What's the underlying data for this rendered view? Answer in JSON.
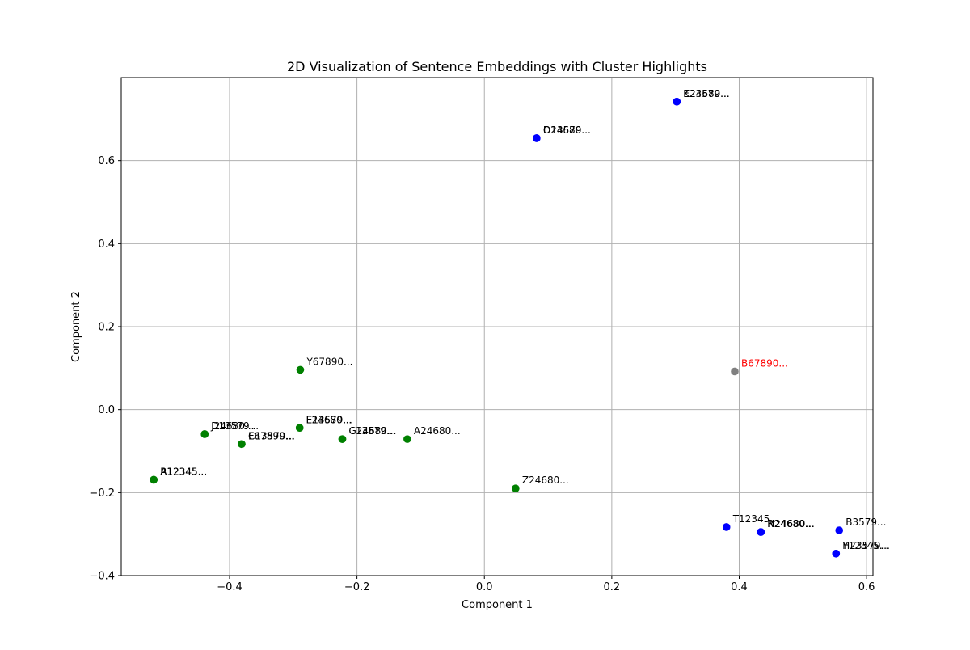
{
  "chart_data": {
    "type": "scatter",
    "title": "2D Visualization of Sentence Embeddings with Cluster Highlights",
    "xlabel": "Component 1",
    "ylabel": "Component 2",
    "xlim": [
      -0.57,
      0.61
    ],
    "ylim": [
      -0.4,
      0.8
    ],
    "x_ticks": [
      -0.4,
      -0.2,
      0.0,
      0.2,
      0.4,
      0.6
    ],
    "x_tick_labels": [
      "−0.4",
      "−0.2",
      "0.0",
      "0.2",
      "0.4",
      "0.6"
    ],
    "y_ticks": [
      -0.4,
      -0.2,
      0.0,
      0.2,
      0.4,
      0.6
    ],
    "y_tick_labels": [
      "−0.4",
      "−0.2",
      "0.0",
      "0.2",
      "0.4",
      "0.6"
    ],
    "grid": true,
    "colors": {
      "blue": "#0000ff",
      "green": "#008000",
      "gray": "#808080",
      "red": "#ff0000"
    },
    "points": [
      {
        "x": 0.302,
        "y": 0.742,
        "color": "blue",
        "label": "E23579...",
        "label_color": "black"
      },
      {
        "x": 0.302,
        "y": 0.742,
        "color": "blue",
        "label": "K24680...",
        "label_color": "black"
      },
      {
        "x": 0.082,
        "y": 0.654,
        "color": "blue",
        "label": "O13579...",
        "label_color": "black"
      },
      {
        "x": 0.082,
        "y": 0.654,
        "color": "blue",
        "label": "D24680...",
        "label_color": "black"
      },
      {
        "x": -0.289,
        "y": 0.096,
        "color": "green",
        "label": "Y67890...",
        "label_color": "black"
      },
      {
        "x": 0.393,
        "y": 0.092,
        "color": "gray",
        "label": "B67890...",
        "label_color": "red"
      },
      {
        "x": -0.29,
        "y": -0.044,
        "color": "green",
        "label": "E13579...",
        "label_color": "black"
      },
      {
        "x": -0.29,
        "y": -0.044,
        "color": "green",
        "label": "F24680...",
        "label_color": "black"
      },
      {
        "x": -0.439,
        "y": -0.059,
        "color": "green",
        "label": "J24680...",
        "label_color": "black"
      },
      {
        "x": -0.439,
        "y": -0.059,
        "color": "green",
        "label": "D13579...",
        "label_color": "black"
      },
      {
        "x": -0.223,
        "y": -0.071,
        "color": "green",
        "label": "G24680...",
        "label_color": "black"
      },
      {
        "x": -0.223,
        "y": -0.071,
        "color": "green",
        "label": "C13579...",
        "label_color": "black"
      },
      {
        "x": -0.121,
        "y": -0.071,
        "color": "green",
        "label": "A24680...",
        "label_color": "black"
      },
      {
        "x": -0.381,
        "y": -0.083,
        "color": "green",
        "label": "E67890...",
        "label_color": "black"
      },
      {
        "x": -0.381,
        "y": -0.083,
        "color": "green",
        "label": "C13579...",
        "label_color": "black"
      },
      {
        "x": -0.519,
        "y": -0.169,
        "color": "green",
        "label": "A12345...",
        "label_color": "black"
      },
      {
        "x": -0.519,
        "y": -0.169,
        "color": "green",
        "label": "R12345...",
        "label_color": "black"
      },
      {
        "x": 0.049,
        "y": -0.19,
        "color": "green",
        "label": "Z24680...",
        "label_color": "black"
      },
      {
        "x": 0.38,
        "y": -0.283,
        "color": "blue",
        "label": "T12345...",
        "label_color": "black"
      },
      {
        "x": 0.434,
        "y": -0.295,
        "color": "blue",
        "label": "N24680...",
        "label_color": "black"
      },
      {
        "x": 0.434,
        "y": -0.295,
        "color": "blue",
        "label": "R24680...",
        "label_color": "black"
      },
      {
        "x": 0.557,
        "y": -0.291,
        "color": "blue",
        "label": "B3579...",
        "label_color": "black"
      },
      {
        "x": 0.552,
        "y": -0.347,
        "color": "blue",
        "label": "H23579...",
        "label_color": "black"
      },
      {
        "x": 0.552,
        "y": -0.347,
        "color": "blue",
        "label": "Y12345...",
        "label_color": "black"
      }
    ]
  }
}
